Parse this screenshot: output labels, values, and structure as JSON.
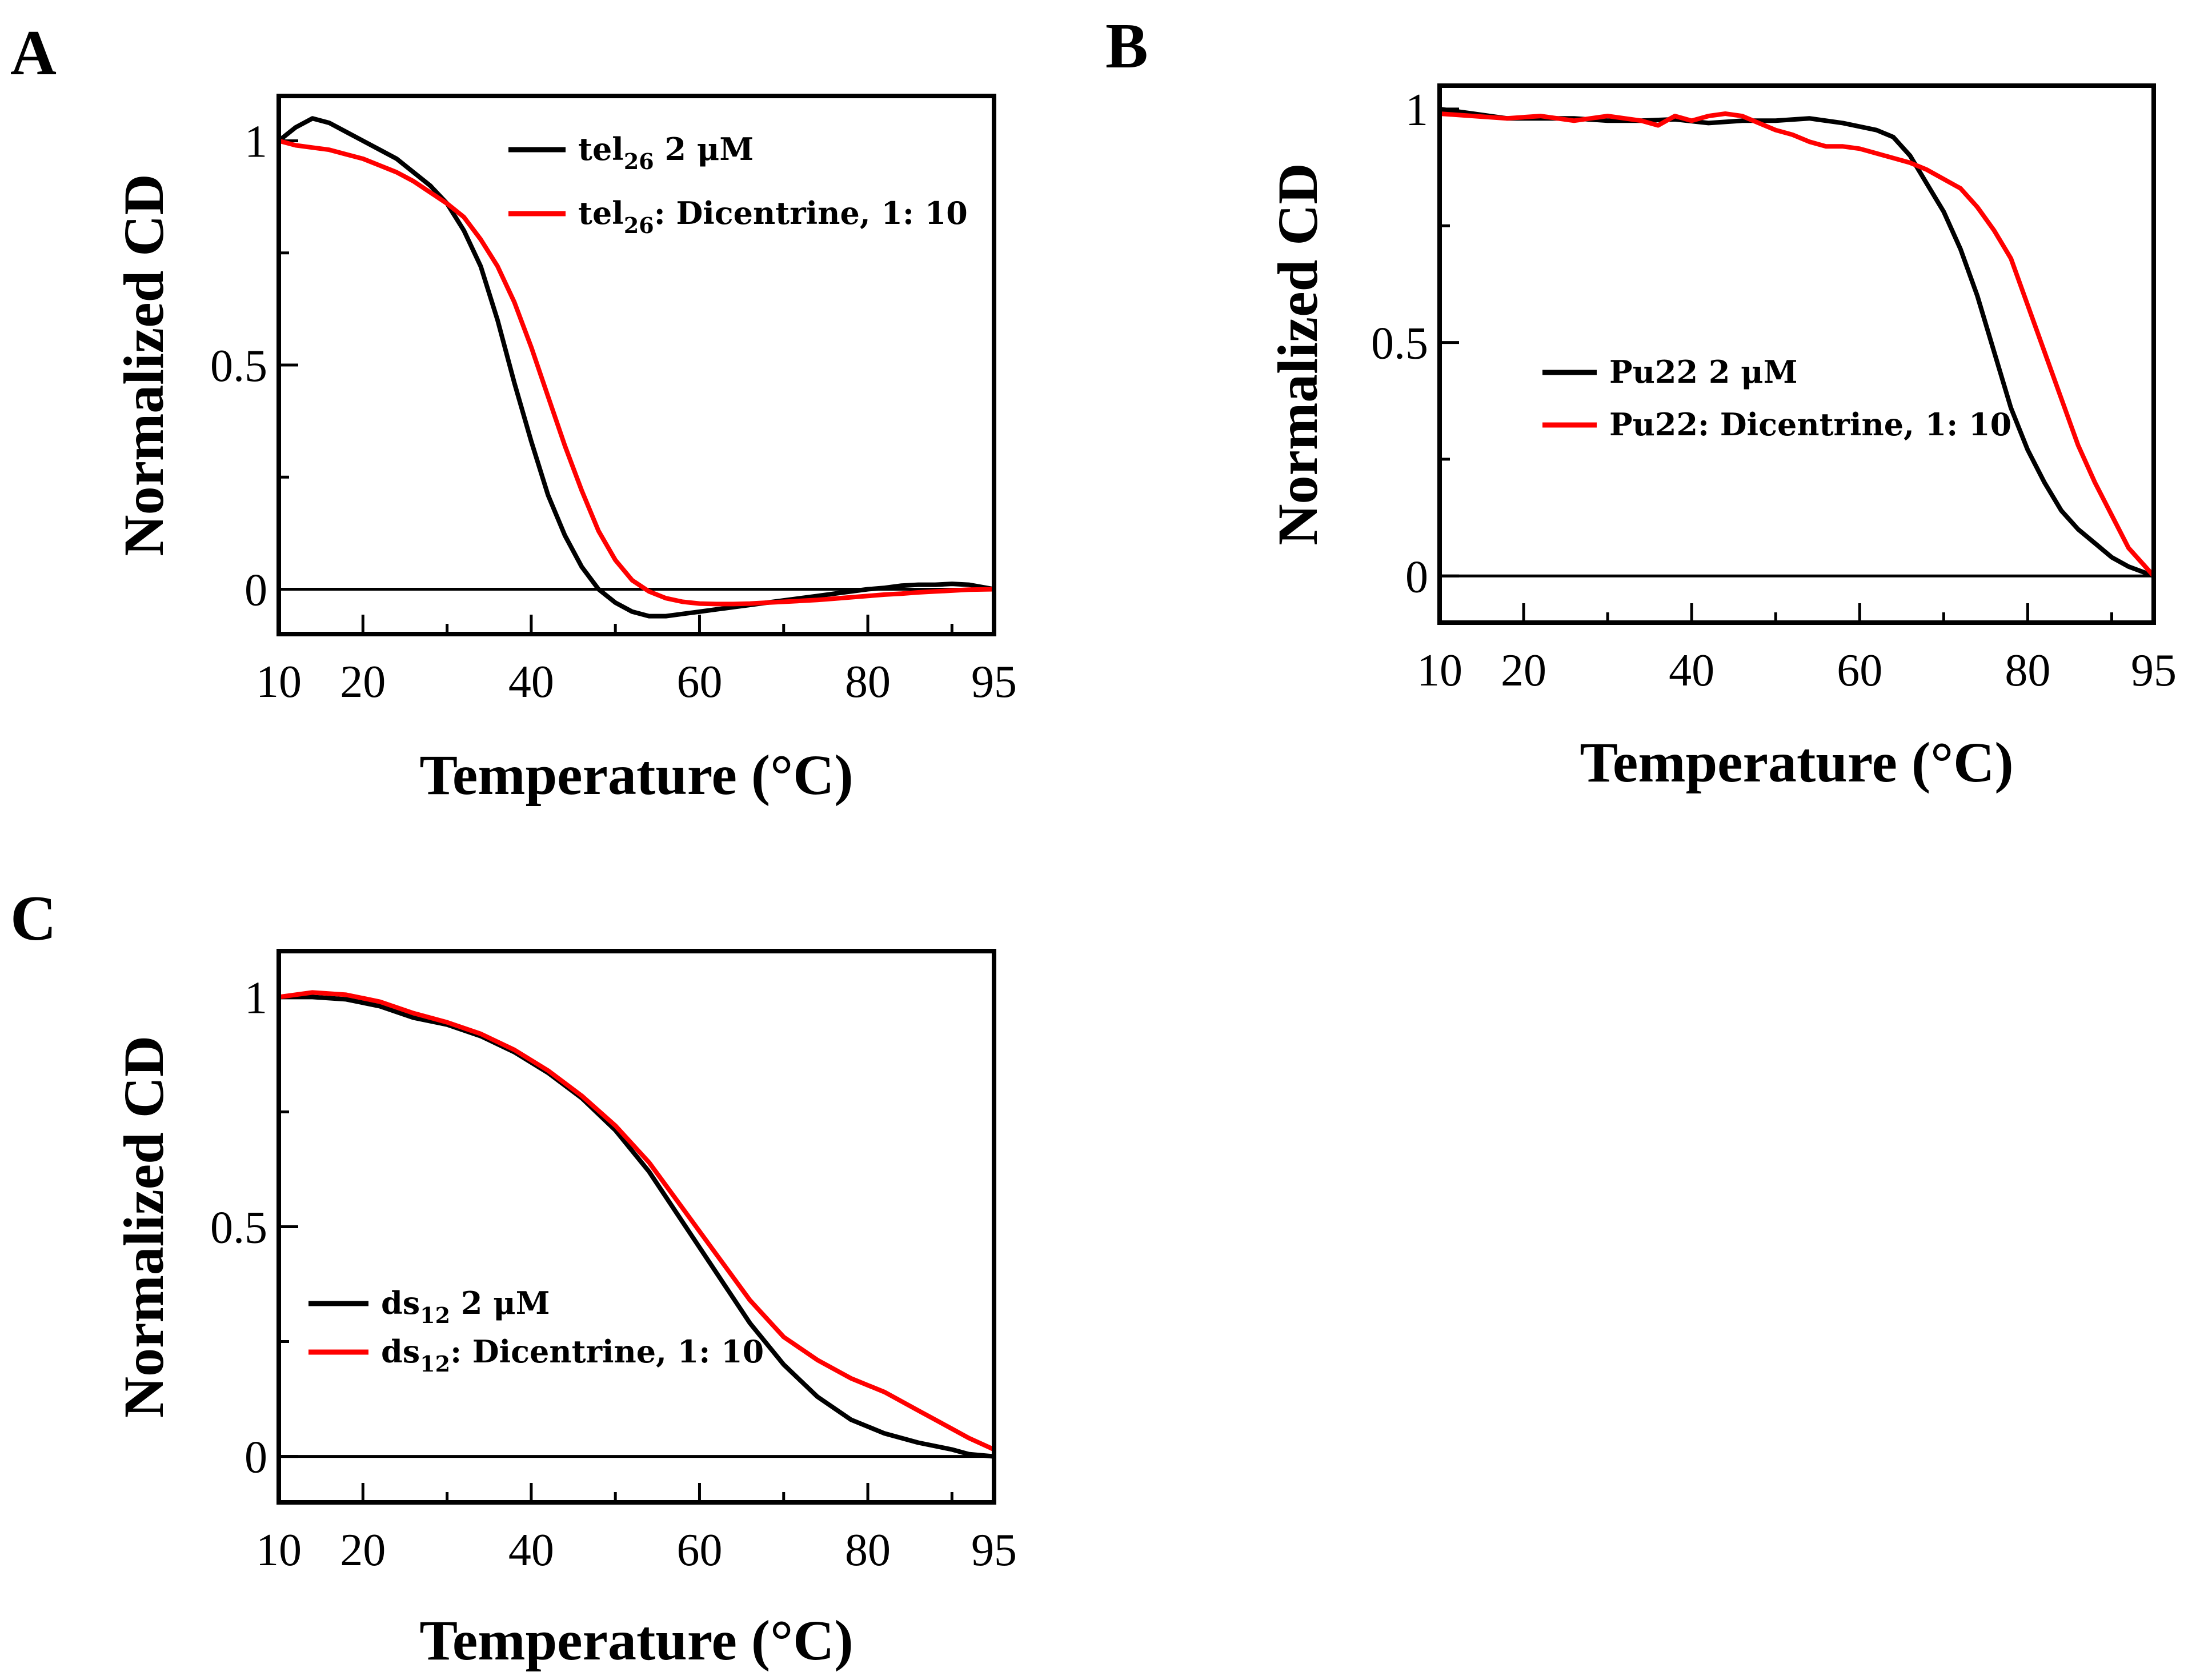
{
  "chart_data": [
    {
      "panel": "A",
      "type": "line",
      "xlabel": "Temperature (°C)",
      "ylabel": "Normalized CD",
      "xlim": [
        10,
        95
      ],
      "ylim": [
        -0.1,
        1.1
      ],
      "xticks": [
        10,
        20,
        40,
        60,
        80,
        95
      ],
      "yticks": [
        0,
        0.5,
        1
      ],
      "ytick_labels": [
        "0",
        "0.5",
        "1"
      ],
      "legend_position": "top-right",
      "series": [
        {
          "name": "tel26 2 μM",
          "label_main": "tel",
          "label_sub": "26",
          "label_rest": " 2 μM",
          "color": "#000000",
          "x": [
            10,
            12,
            14,
            16,
            18,
            20,
            22,
            24,
            26,
            28,
            30,
            32,
            34,
            36,
            38,
            40,
            42,
            44,
            46,
            48,
            50,
            52,
            54,
            56,
            58,
            60,
            62,
            64,
            66,
            68,
            70,
            72,
            74,
            76,
            78,
            80,
            82,
            84,
            86,
            88,
            90,
            92,
            95
          ],
          "y": [
            1.0,
            1.03,
            1.05,
            1.04,
            1.02,
            1.0,
            0.98,
            0.96,
            0.93,
            0.9,
            0.86,
            0.8,
            0.72,
            0.6,
            0.46,
            0.33,
            0.21,
            0.12,
            0.05,
            0.0,
            -0.03,
            -0.05,
            -0.06,
            -0.06,
            -0.055,
            -0.05,
            -0.045,
            -0.04,
            -0.035,
            -0.03,
            -0.025,
            -0.02,
            -0.015,
            -0.01,
            -0.005,
            0.0,
            0.003,
            0.008,
            0.01,
            0.01,
            0.012,
            0.01,
            0.0
          ]
        },
        {
          "name": "tel26: Dicentrine, 1: 10",
          "label_main": "tel",
          "label_sub": "26",
          "label_rest": ": Dicentrine, 1: 10",
          "color": "#ff0000",
          "x": [
            10,
            12,
            14,
            16,
            18,
            20,
            22,
            24,
            26,
            28,
            30,
            32,
            34,
            36,
            38,
            40,
            42,
            44,
            46,
            48,
            50,
            52,
            54,
            56,
            58,
            60,
            62,
            64,
            66,
            68,
            70,
            72,
            74,
            76,
            78,
            80,
            82,
            84,
            86,
            88,
            90,
            92,
            95
          ],
          "y": [
            1.0,
            0.99,
            0.985,
            0.98,
            0.97,
            0.96,
            0.945,
            0.93,
            0.91,
            0.885,
            0.86,
            0.83,
            0.78,
            0.72,
            0.64,
            0.54,
            0.43,
            0.32,
            0.22,
            0.13,
            0.065,
            0.02,
            -0.005,
            -0.02,
            -0.028,
            -0.032,
            -0.033,
            -0.033,
            -0.032,
            -0.03,
            -0.028,
            -0.026,
            -0.024,
            -0.021,
            -0.018,
            -0.015,
            -0.012,
            -0.01,
            -0.007,
            -0.005,
            -0.003,
            -0.001,
            0.0
          ]
        }
      ]
    },
    {
      "panel": "B",
      "type": "line",
      "xlabel": "Temperature (°C)",
      "ylabel": "Normalized CD",
      "xlim": [
        10,
        95
      ],
      "ylim": [
        -0.1,
        1.05
      ],
      "xticks": [
        10,
        20,
        40,
        60,
        80,
        95
      ],
      "yticks": [
        0,
        0.5,
        1
      ],
      "ytick_labels": [
        "0",
        "0.5",
        "1"
      ],
      "legend_position": "center-left",
      "series": [
        {
          "name": "Pu22 2 μM",
          "label_main": "Pu22 2 μM",
          "label_sub": "",
          "label_rest": "",
          "color": "#000000",
          "x": [
            10,
            14,
            18,
            22,
            26,
            30,
            34,
            38,
            42,
            46,
            50,
            54,
            58,
            62,
            64,
            66,
            68,
            70,
            72,
            74,
            76,
            78,
            80,
            82,
            84,
            86,
            88,
            90,
            92,
            95
          ],
          "y": [
            1.0,
            0.99,
            0.98,
            0.98,
            0.98,
            0.975,
            0.975,
            0.978,
            0.97,
            0.975,
            0.975,
            0.98,
            0.97,
            0.955,
            0.94,
            0.9,
            0.84,
            0.78,
            0.7,
            0.6,
            0.48,
            0.36,
            0.27,
            0.2,
            0.14,
            0.1,
            0.07,
            0.04,
            0.02,
            0.0
          ]
        },
        {
          "name": "Pu22: Dicentrine, 1: 10",
          "label_main": "Pu22",
          "label_sub": "",
          "label_rest": ": Dicentrine, 1: 10",
          "color": "#ff0000",
          "x": [
            10,
            14,
            18,
            22,
            26,
            30,
            34,
            36,
            38,
            40,
            42,
            44,
            46,
            48,
            50,
            52,
            54,
            56,
            58,
            60,
            62,
            64,
            66,
            68,
            70,
            72,
            74,
            76,
            78,
            80,
            82,
            84,
            86,
            88,
            90,
            92,
            95
          ],
          "y": [
            0.99,
            0.985,
            0.98,
            0.985,
            0.975,
            0.985,
            0.975,
            0.965,
            0.985,
            0.975,
            0.985,
            0.99,
            0.985,
            0.97,
            0.955,
            0.945,
            0.93,
            0.92,
            0.92,
            0.915,
            0.905,
            0.895,
            0.885,
            0.87,
            0.85,
            0.83,
            0.79,
            0.74,
            0.68,
            0.58,
            0.48,
            0.38,
            0.28,
            0.2,
            0.13,
            0.06,
            0.0
          ]
        }
      ]
    },
    {
      "panel": "C",
      "type": "line",
      "xlabel": "Temperature (°C)",
      "ylabel": "Normalized CD",
      "xlim": [
        10,
        95
      ],
      "ylim": [
        -0.1,
        1.1
      ],
      "xticks": [
        10,
        20,
        40,
        60,
        80,
        95
      ],
      "yticks": [
        0,
        0.5,
        1
      ],
      "ytick_labels": [
        "0",
        "0.5",
        "1"
      ],
      "legend_position": "bottom-left",
      "series": [
        {
          "name": "ds12 2 μM",
          "label_main": "ds",
          "label_sub": "12",
          "label_rest": " 2 μM",
          "color": "#000000",
          "x": [
            10,
            14,
            18,
            22,
            26,
            30,
            34,
            38,
            42,
            46,
            50,
            54,
            58,
            62,
            66,
            70,
            74,
            78,
            82,
            86,
            90,
            92,
            95
          ],
          "y": [
            1.0,
            1.0,
            0.995,
            0.98,
            0.955,
            0.94,
            0.915,
            0.88,
            0.835,
            0.78,
            0.71,
            0.62,
            0.51,
            0.4,
            0.29,
            0.2,
            0.13,
            0.08,
            0.05,
            0.03,
            0.015,
            0.005,
            0.0
          ]
        },
        {
          "name": "ds12: Dicentrine, 1: 10",
          "label_main": "ds",
          "label_sub": "12",
          "label_rest": ": Dicentrine, 1: 10",
          "color": "#ff0000",
          "x": [
            10,
            14,
            18,
            22,
            26,
            30,
            34,
            38,
            42,
            46,
            50,
            54,
            58,
            62,
            66,
            70,
            74,
            78,
            82,
            86,
            90,
            92,
            95
          ],
          "y": [
            1.0,
            1.01,
            1.005,
            0.99,
            0.965,
            0.945,
            0.92,
            0.885,
            0.84,
            0.785,
            0.72,
            0.64,
            0.54,
            0.44,
            0.34,
            0.26,
            0.21,
            0.17,
            0.14,
            0.1,
            0.06,
            0.04,
            0.015
          ]
        }
      ]
    }
  ]
}
